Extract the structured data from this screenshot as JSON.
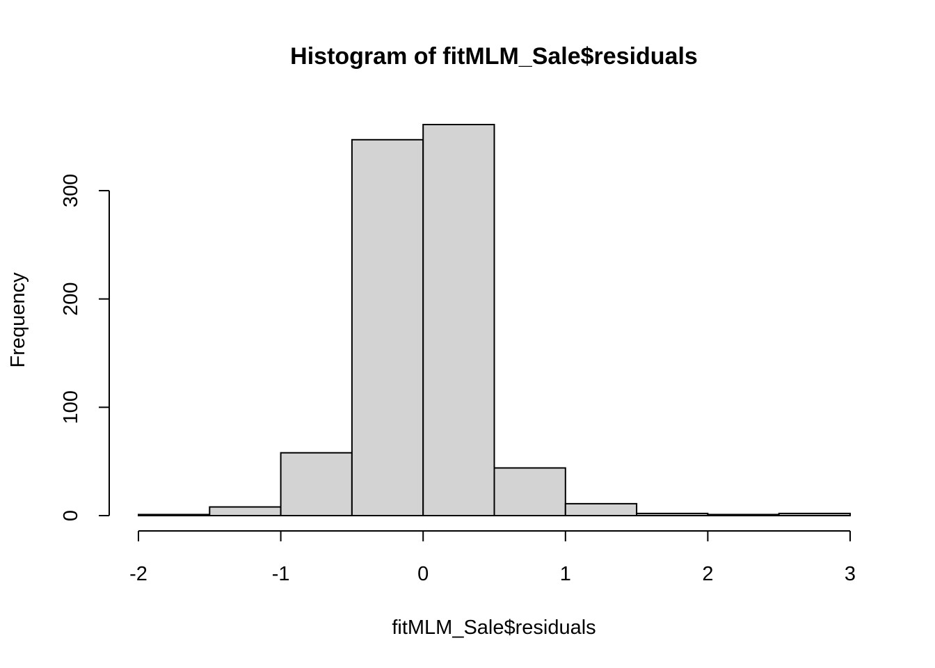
{
  "chart_data": {
    "type": "bar",
    "title": "Histogram of fitMLM_Sale$residuals",
    "xlabel": "fitMLM_Sale$residuals",
    "ylabel": "Frequency",
    "bin_edges": [
      -2,
      -1.5,
      -1,
      -0.5,
      0,
      0.5,
      1,
      1.5,
      2,
      2.5,
      3
    ],
    "values": [
      1,
      8,
      58,
      347,
      361,
      44,
      11,
      2,
      1,
      2
    ],
    "xlim": [
      -2,
      3
    ],
    "ylim": [
      0,
      361
    ],
    "x_ticks": [
      -2,
      -1,
      0,
      1,
      2,
      3
    ],
    "x_tick_labels": [
      "-2",
      "-1",
      "0",
      "1",
      "2",
      "3"
    ],
    "y_ticks": [
      0,
      100,
      200,
      300
    ],
    "y_tick_labels": [
      "0",
      "100",
      "200",
      "300"
    ],
    "bar_fill": "#d3d3d3",
    "bar_stroke": "#000000",
    "grid": false,
    "legend": "none"
  }
}
